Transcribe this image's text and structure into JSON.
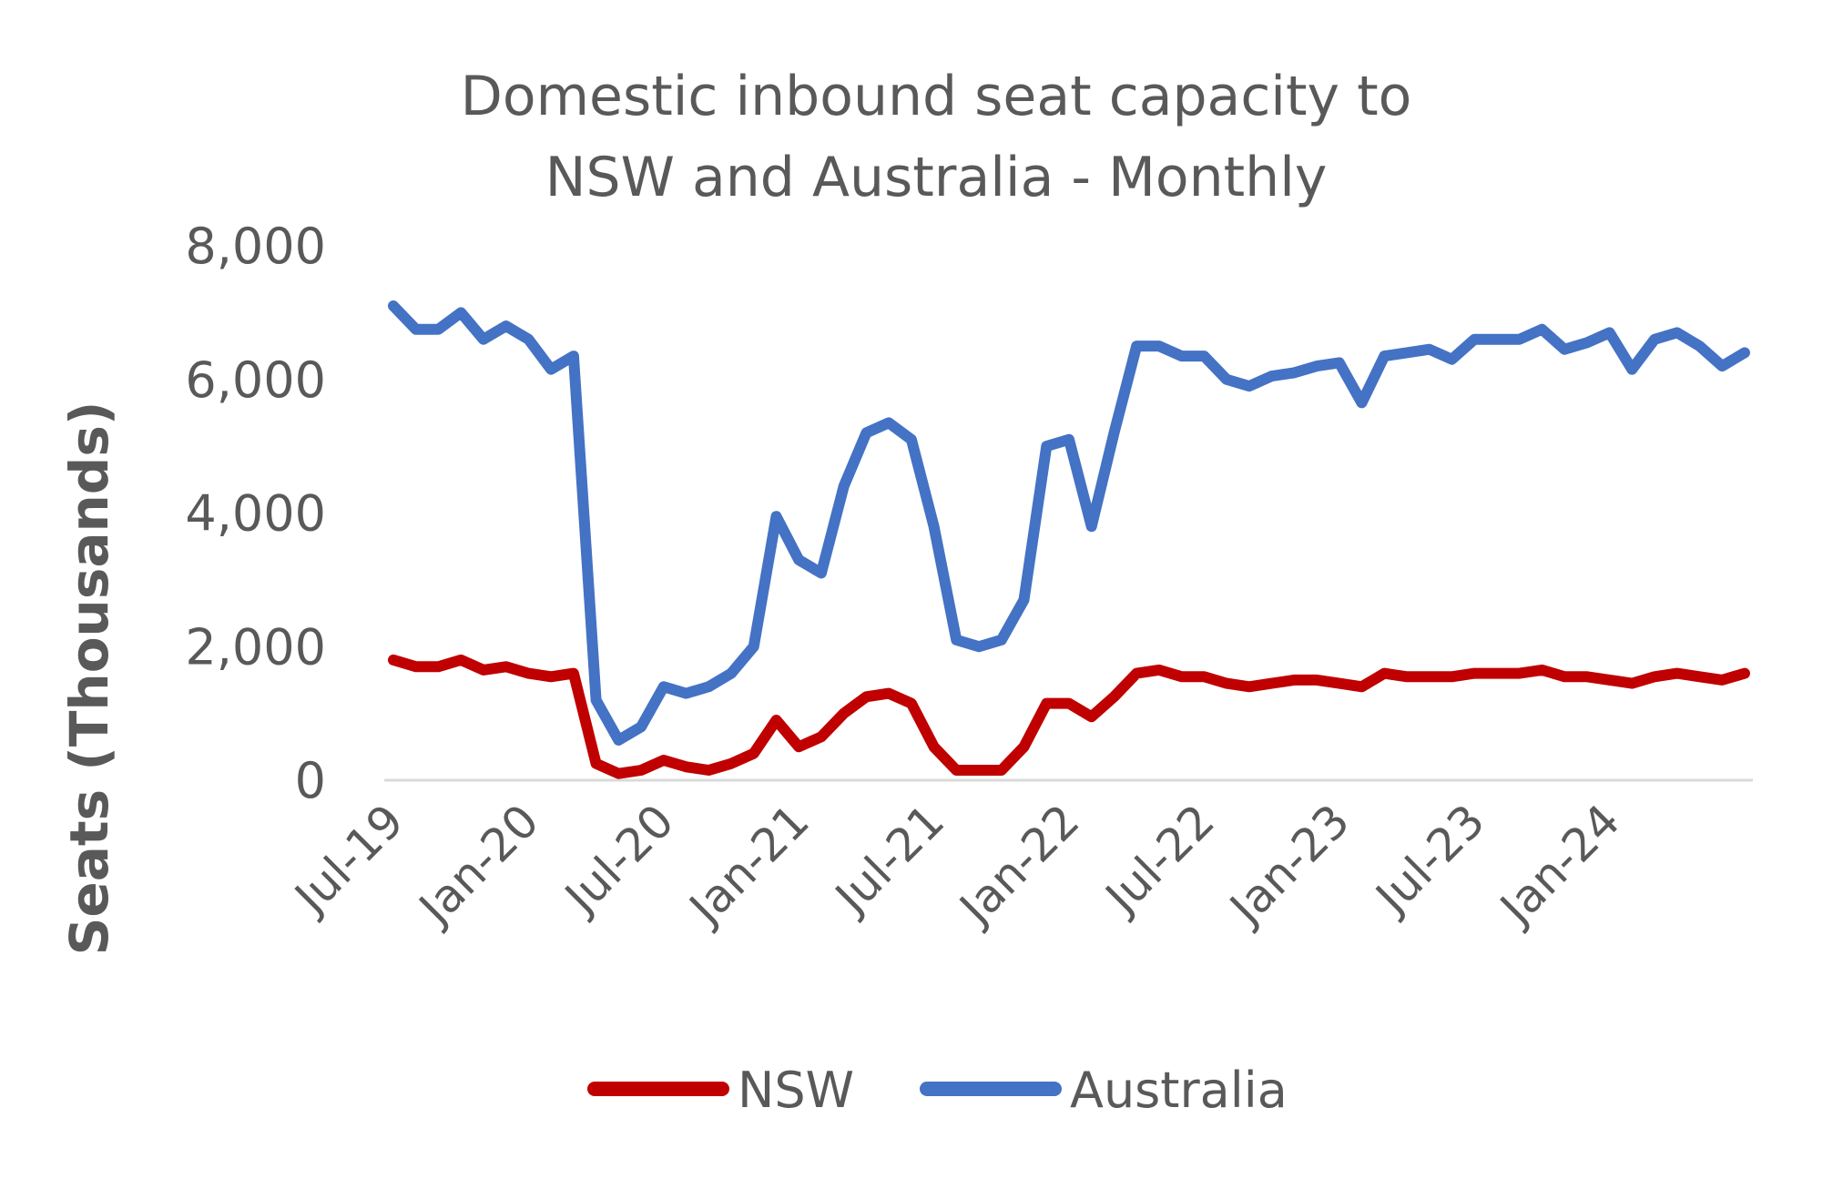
{
  "chart_data": {
    "type": "line",
    "title": [
      "Domestic inbound seat capacity to",
      "NSW and Australia - Monthly"
    ],
    "xlabel": "",
    "ylabel": "Seats (Thousands)",
    "ylim": [
      0,
      8000
    ],
    "yticks": [
      "0",
      "2,000",
      "4,000",
      "6,000",
      "8,000"
    ],
    "ytick_values": [
      0,
      2000,
      4000,
      6000,
      8000
    ],
    "x_tick_labels": [
      "Jul-19",
      "Jan-20",
      "Jul-20",
      "Jan-21",
      "Jul-21",
      "Jan-22",
      "Jul-22",
      "Jan-23",
      "Jul-23",
      "Jan-24"
    ],
    "x": [
      "Jul-19",
      "Aug-19",
      "Sep-19",
      "Oct-19",
      "Nov-19",
      "Dec-19",
      "Jan-20",
      "Feb-20",
      "Mar-20",
      "Apr-20",
      "May-20",
      "Jun-20",
      "Jul-20",
      "Aug-20",
      "Sep-20",
      "Oct-20",
      "Nov-20",
      "Dec-20",
      "Jan-21",
      "Feb-21",
      "Mar-21",
      "Apr-21",
      "May-21",
      "Jun-21",
      "Jul-21",
      "Aug-21",
      "Sep-21",
      "Oct-21",
      "Nov-21",
      "Dec-21",
      "Jan-22",
      "Feb-22",
      "Mar-22",
      "Apr-22",
      "May-22",
      "Jun-22",
      "Jul-22",
      "Aug-22",
      "Sep-22",
      "Oct-22",
      "Nov-22",
      "Dec-22",
      "Jan-23",
      "Feb-23",
      "Mar-23",
      "Apr-23",
      "May-23",
      "Jun-23",
      "Jul-23",
      "Aug-23",
      "Sep-23",
      "Oct-23",
      "Nov-23",
      "Dec-23",
      "Jan-24",
      "Feb-24",
      "Mar-24",
      "Apr-24",
      "May-24",
      "Jun-24",
      "Jul-24"
    ],
    "series": [
      {
        "name": "NSW",
        "color": "#c00000",
        "values": [
          1800,
          1700,
          1700,
          1800,
          1650,
          1700,
          1600,
          1550,
          1600,
          250,
          100,
          150,
          300,
          200,
          150,
          250,
          400,
          900,
          500,
          650,
          1000,
          1250,
          1300,
          1150,
          500,
          150,
          150,
          150,
          500,
          1150,
          1150,
          950,
          1250,
          1600,
          1650,
          1550,
          1550,
          1450,
          1400,
          1450,
          1500,
          1500,
          1450,
          1400,
          1600,
          1550,
          1550,
          1550,
          1600,
          1600,
          1600,
          1650,
          1550,
          1550,
          1500,
          1450,
          1550,
          1600,
          1550,
          1500,
          1600
        ]
      },
      {
        "name": "Australia",
        "color": "#4472c4",
        "values": [
          7100,
          6750,
          6750,
          7000,
          6600,
          6800,
          6600,
          6150,
          6350,
          1200,
          600,
          800,
          1400,
          1300,
          1400,
          1600,
          2000,
          3950,
          3300,
          3100,
          4400,
          5200,
          5350,
          5100,
          3800,
          2100,
          2000,
          2100,
          2700,
          5000,
          5100,
          3800,
          5200,
          6500,
          6500,
          6350,
          6350,
          6000,
          5900,
          6050,
          6100,
          6200,
          6250,
          5650,
          6350,
          6400,
          6450,
          6300,
          6600,
          6600,
          6600,
          6750,
          6450,
          6550,
          6700,
          6150,
          6600,
          6700,
          6500,
          6200,
          6400
        ]
      }
    ],
    "legend": "bottom",
    "grid": false
  }
}
